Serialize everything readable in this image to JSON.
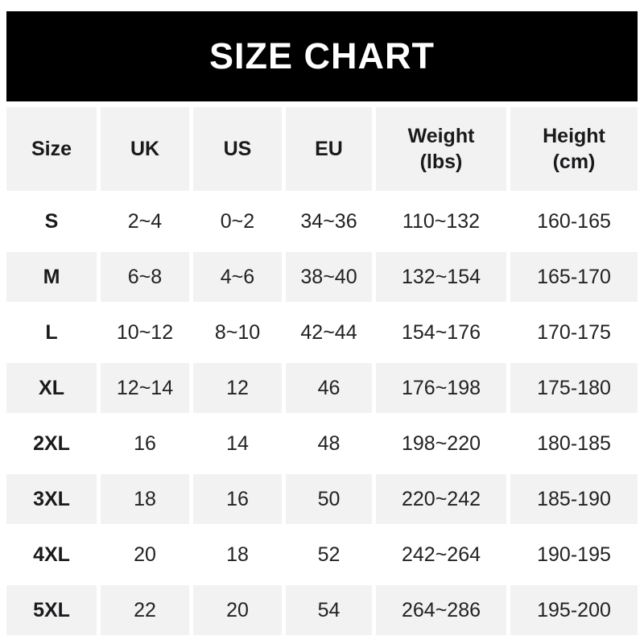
{
  "banner": {
    "title": "SIZE CHART"
  },
  "colors": {
    "banner_bg": "#000000",
    "banner_text": "#ffffff",
    "stripe_bg": "#f2f2f2",
    "row_bg": "#ffffff",
    "text": "#222222"
  },
  "header_display": {
    "size": [
      "Size"
    ],
    "uk": [
      "UK"
    ],
    "us": [
      "US"
    ],
    "eu": [
      "EU"
    ],
    "weight": [
      "Weight",
      "(lbs)"
    ],
    "height": [
      "Height",
      "(cm)"
    ]
  },
  "chart_data": {
    "type": "table",
    "title": "SIZE CHART",
    "columns": [
      "Size",
      "UK",
      "US",
      "EU",
      "Weight (lbs)",
      "Height (cm)"
    ],
    "rows": [
      [
        "S",
        "2~4",
        "0~2",
        "34~36",
        "110~132",
        "160-165"
      ],
      [
        "M",
        "6~8",
        "4~6",
        "38~40",
        "132~154",
        "165-170"
      ],
      [
        "L",
        "10~12",
        "8~10",
        "42~44",
        "154~176",
        "170-175"
      ],
      [
        "XL",
        "12~14",
        "12",
        "46",
        "176~198",
        "175-180"
      ],
      [
        "2XL",
        "16",
        "14",
        "48",
        "198~220",
        "180-185"
      ],
      [
        "3XL",
        "18",
        "16",
        "50",
        "220~242",
        "185-190"
      ],
      [
        "4XL",
        "20",
        "18",
        "52",
        "242~264",
        "190-195"
      ],
      [
        "5XL",
        "22",
        "20",
        "54",
        "264~286",
        "195-200"
      ]
    ]
  }
}
